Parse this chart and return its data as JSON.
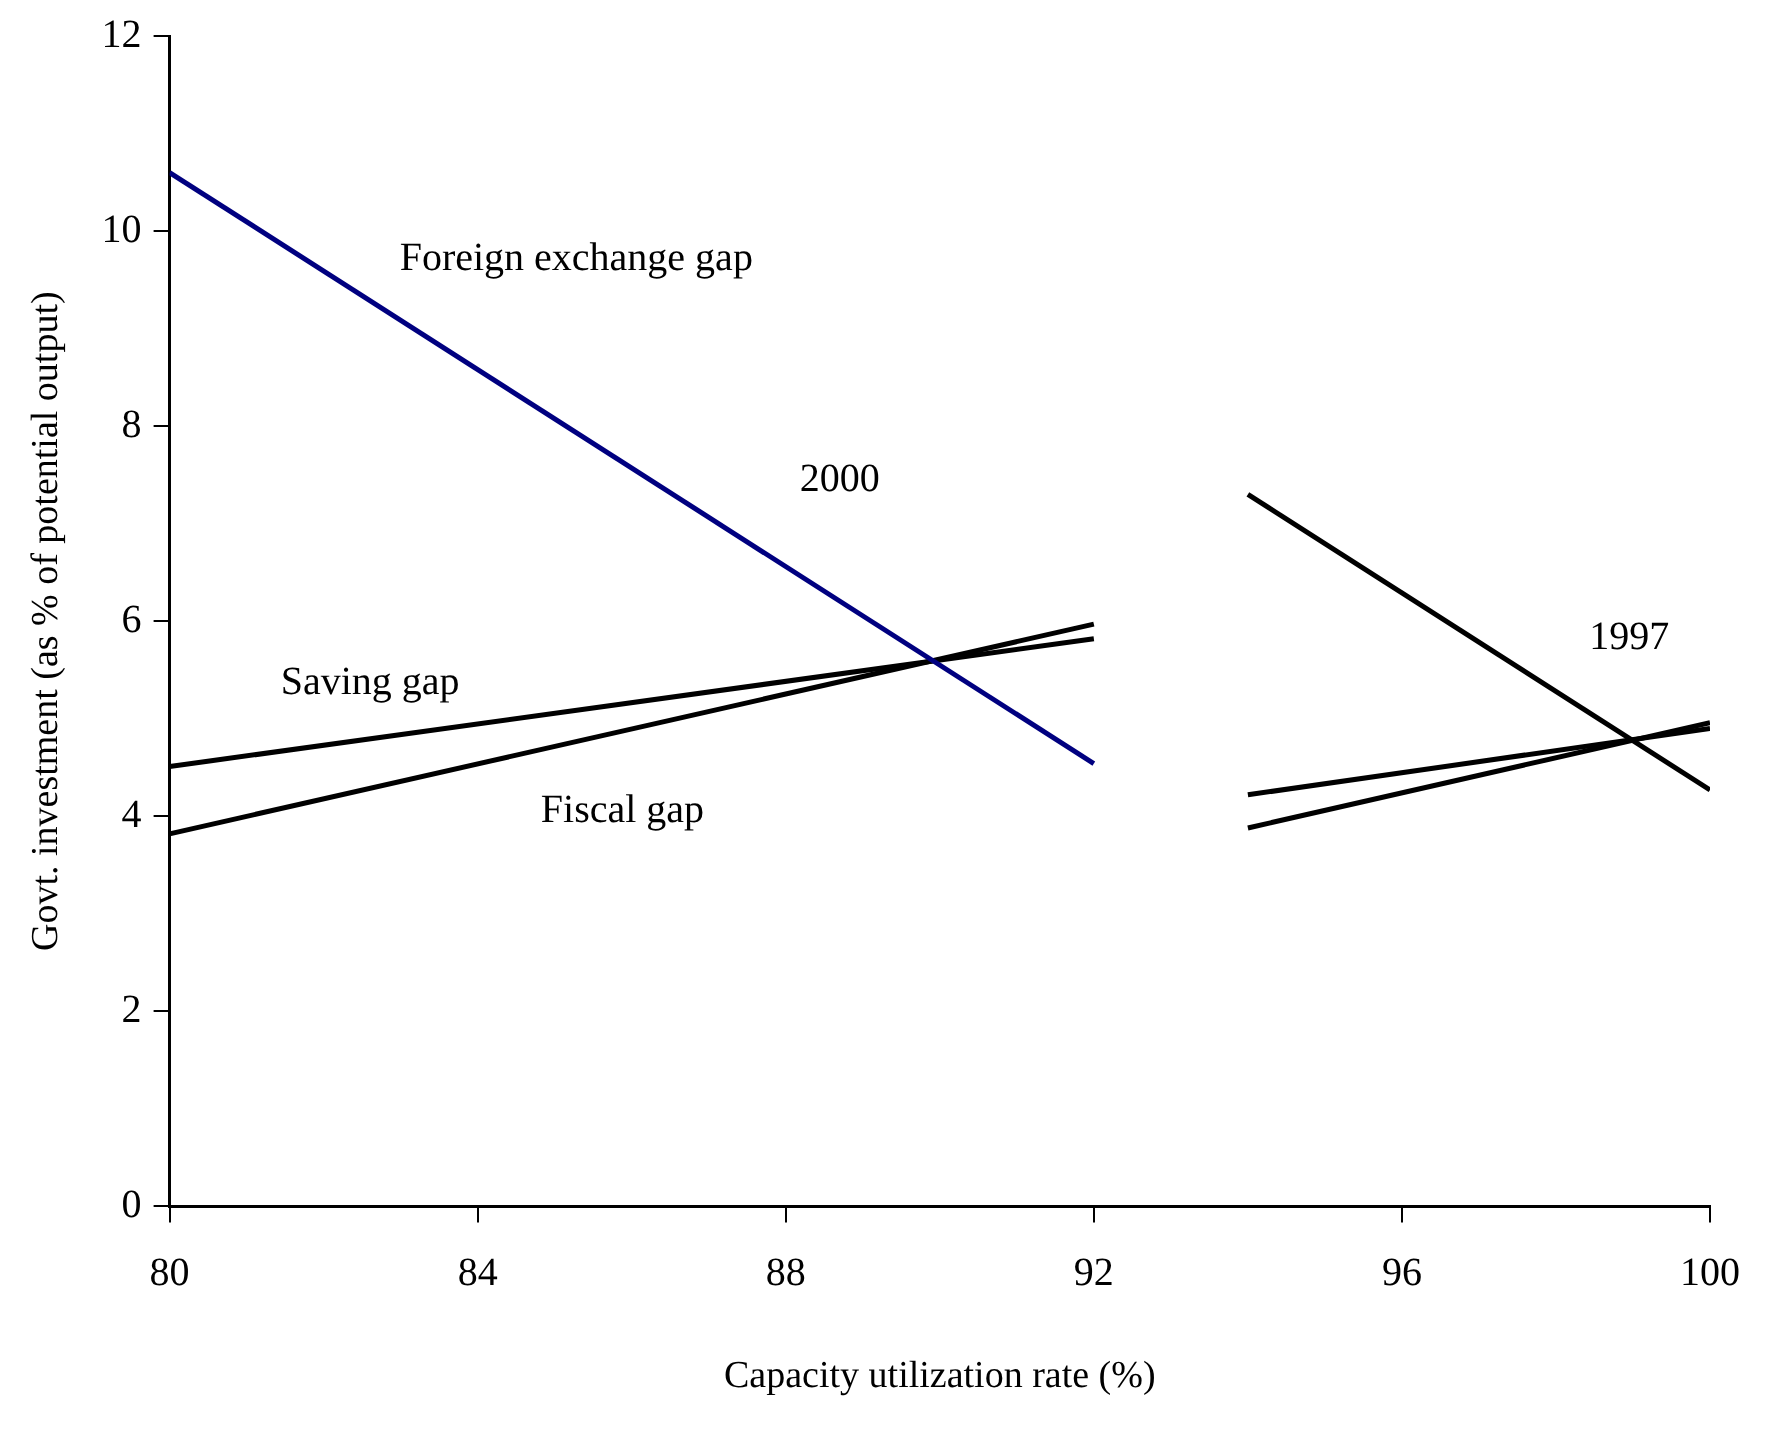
{
  "chart_data": {
    "type": "line",
    "xlabel": "Capacity utilization rate (%)",
    "ylabel": "Govt. investment (as % of potential output)",
    "xlim": [
      80,
      100
    ],
    "xticks": [
      80,
      84,
      88,
      92,
      96,
      100
    ],
    "ylim": [
      0,
      12
    ],
    "yticks": [
      0,
      2,
      4,
      6,
      8,
      10,
      12
    ],
    "marker": "none",
    "series": [
      {
        "name": "Foreign exchange gap",
        "color": "#000080",
        "x": [
          80,
          92
        ],
        "values": [
          10.6,
          4.54
        ]
      },
      {
        "name": "Saving gap",
        "color": "#000000",
        "x": [
          80,
          92
        ],
        "values": [
          4.51,
          5.82
        ]
      },
      {
        "name": "Fiscal gap",
        "color": "#000000",
        "x": [
          80,
          92
        ],
        "values": [
          3.82,
          5.97
        ]
      },
      {
        "color": "#000000",
        "x": [
          94,
          100
        ],
        "values": [
          7.3,
          4.27
        ]
      },
      {
        "color": "#000000",
        "x": [
          94,
          100
        ],
        "values": [
          4.22,
          4.9
        ]
      },
      {
        "color": "#000000",
        "x": [
          94,
          100
        ],
        "values": [
          3.88,
          4.96
        ]
      }
    ],
    "annotations": [
      "2000",
      "1997"
    ]
  }
}
